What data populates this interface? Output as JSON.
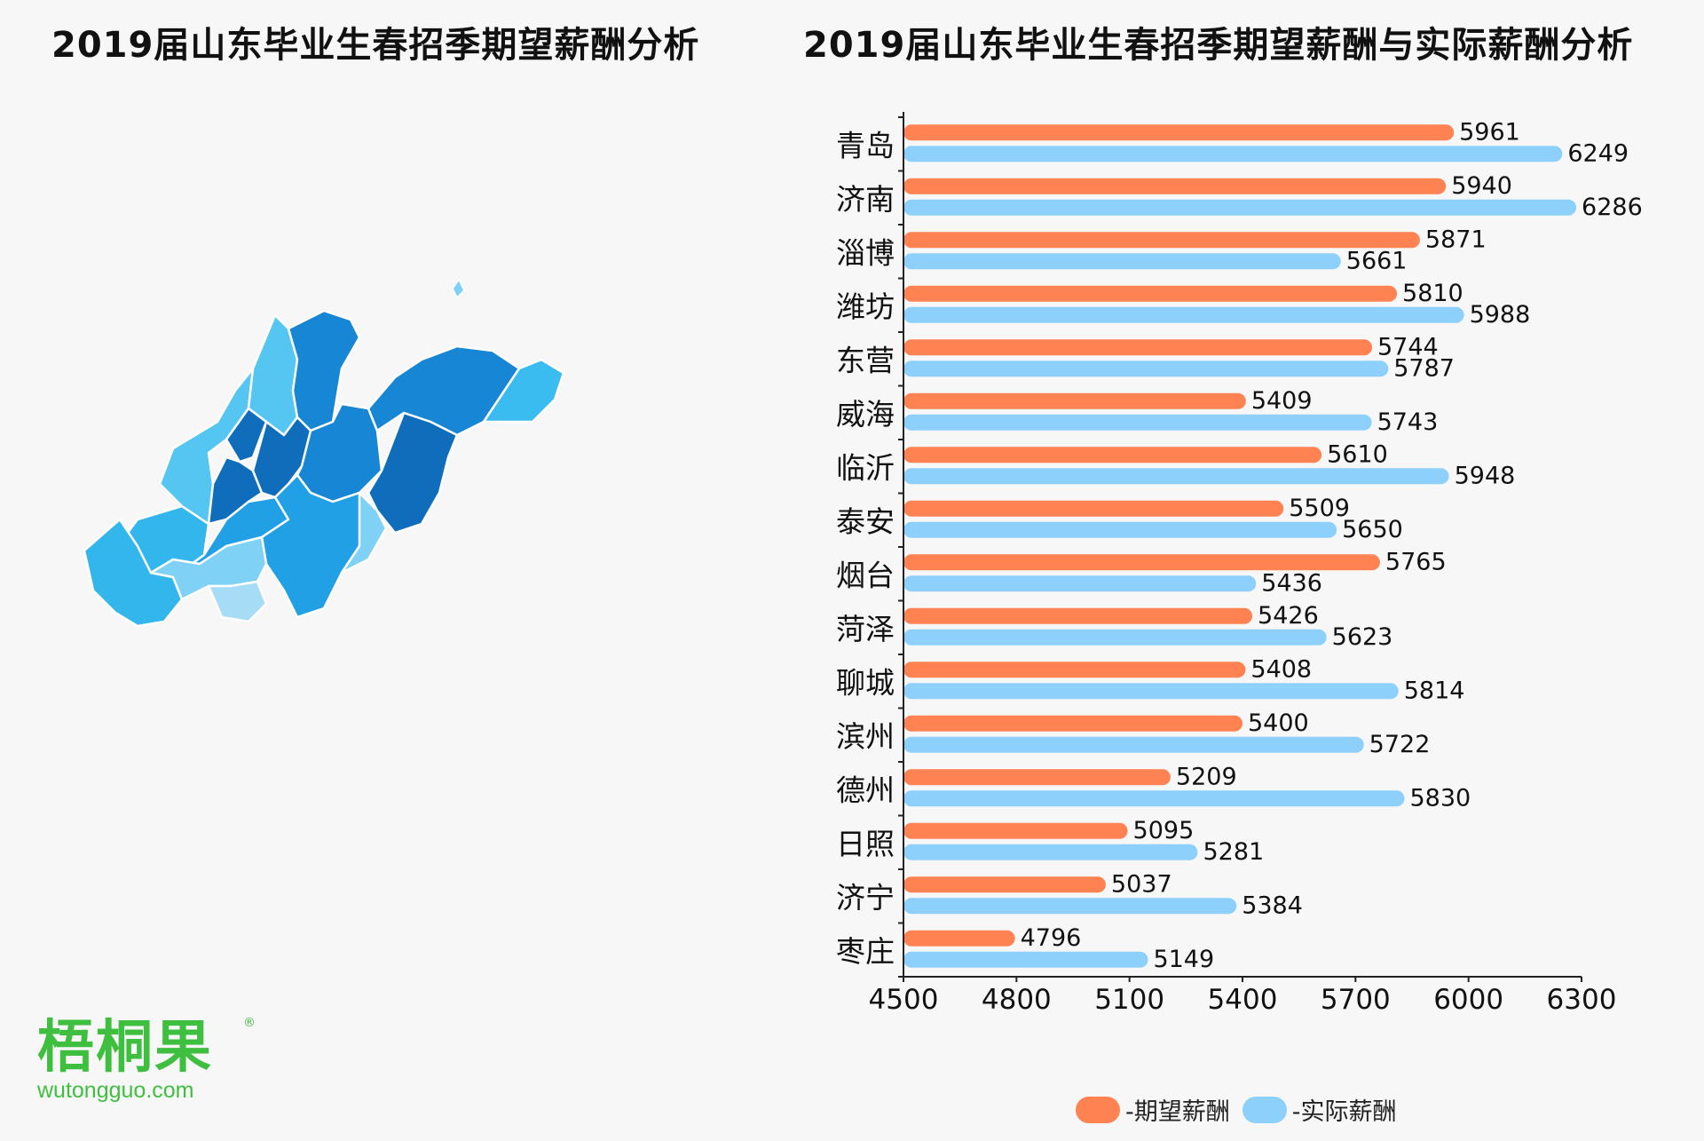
{
  "titles": {
    "left": "2019届山东毕业生春招季期望薪酬分析",
    "right": "2019届山东毕业生春招季期望薪酬与实际薪酬分析"
  },
  "map": {
    "region_colors": [
      "#33b6ec",
      "#55c6f2",
      "#1786d4",
      "#0f6dbb",
      "#22a0e6",
      "#7fd2f6",
      "#a6dcf6",
      "#3bbcf0"
    ]
  },
  "chart_data": {
    "type": "bar",
    "orientation": "horizontal",
    "categories": [
      "青岛",
      "济南",
      "淄博",
      "潍坊",
      "东营",
      "威海",
      "临沂",
      "泰安",
      "烟台",
      "菏泽",
      "聊城",
      "滨州",
      "德州",
      "日照",
      "济宁",
      "枣庄"
    ],
    "series": [
      {
        "name": "-期望薪酬",
        "color": "#ff8252",
        "values": [
          5961,
          5940,
          5871,
          5810,
          5744,
          5409,
          5610,
          5509,
          5765,
          5426,
          5408,
          5400,
          5209,
          5095,
          5037,
          4796
        ]
      },
      {
        "name": "-实际薪酬",
        "color": "#8dd0fb",
        "values": [
          6249,
          6286,
          5661,
          5988,
          5787,
          5743,
          5948,
          5650,
          5436,
          5623,
          5814,
          5722,
          5830,
          5281,
          5384,
          5149
        ]
      }
    ],
    "xlim": [
      4500,
      6300
    ],
    "xticks": [
      4500,
      4800,
      5100,
      5400,
      5700,
      6000,
      6300
    ],
    "legend_position": "bottom",
    "grid": false
  },
  "logo": {
    "name": "梧桐果",
    "registered": "®",
    "url": "wutongguo.com"
  }
}
